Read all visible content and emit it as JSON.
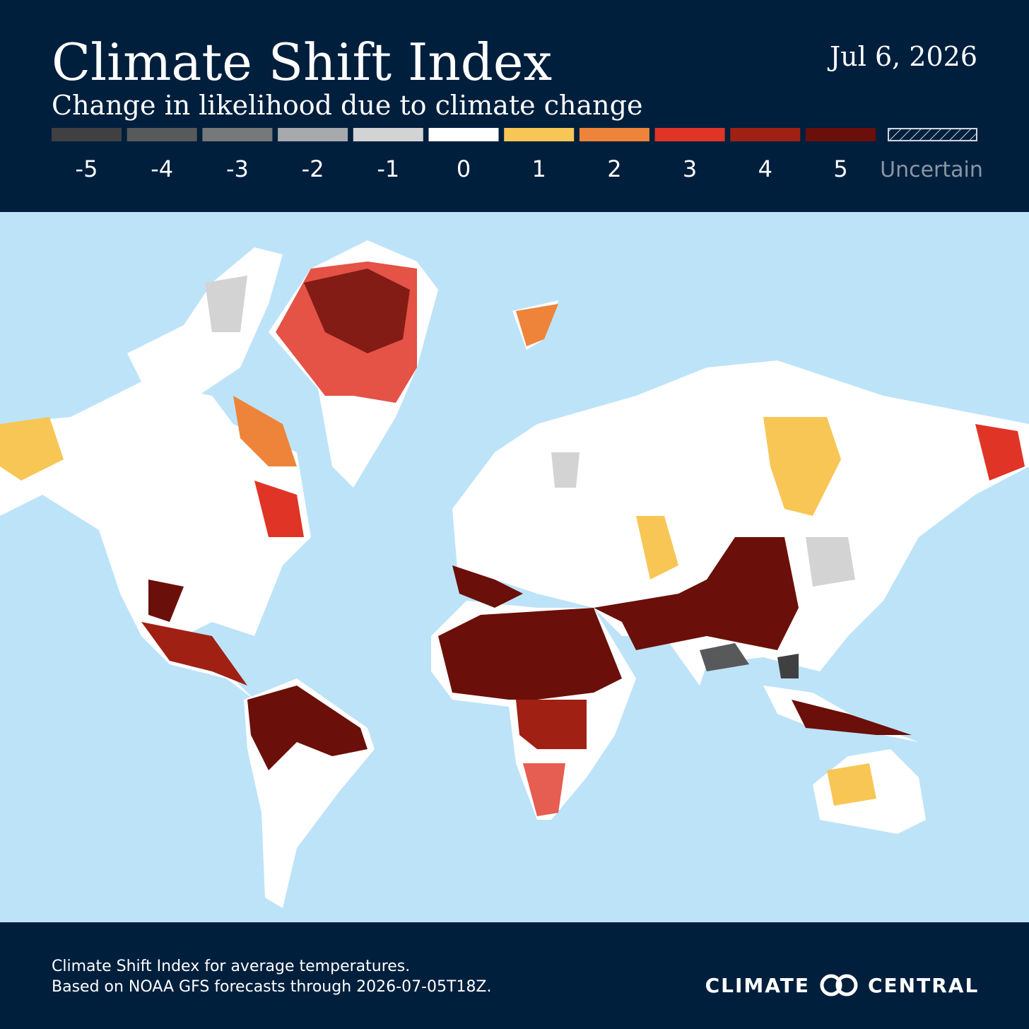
{
  "header": {
    "title": "Climate Shift Index",
    "subtitle": "Change in likelihood due to climate change",
    "date": "Jul 6, 2026"
  },
  "legend": {
    "items": [
      {
        "value": -5,
        "color": "#404042"
      },
      {
        "value": -4,
        "color": "#58595b"
      },
      {
        "value": -3,
        "color": "#77787a"
      },
      {
        "value": -2,
        "color": "#a7a9ac"
      },
      {
        "value": -1,
        "color": "#d3d3d3"
      },
      {
        "value": 0,
        "color": "#ffffff"
      },
      {
        "value": 1,
        "color": "#f7c654"
      },
      {
        "value": 2,
        "color": "#ee8439"
      },
      {
        "value": 3,
        "color": "#e03426"
      },
      {
        "value": 4,
        "color": "#a02014"
      },
      {
        "value": 5,
        "color": "#6b0f0a"
      }
    ],
    "uncertain": "Uncertain"
  },
  "footer": {
    "lines": [
      "Climate Shift Index for average temperatures.",
      "Based on NOAA GFS forecasts through 2026-07-05T18Z."
    ],
    "logo": [
      "CLIMATE",
      "CENTRAL"
    ]
  }
}
